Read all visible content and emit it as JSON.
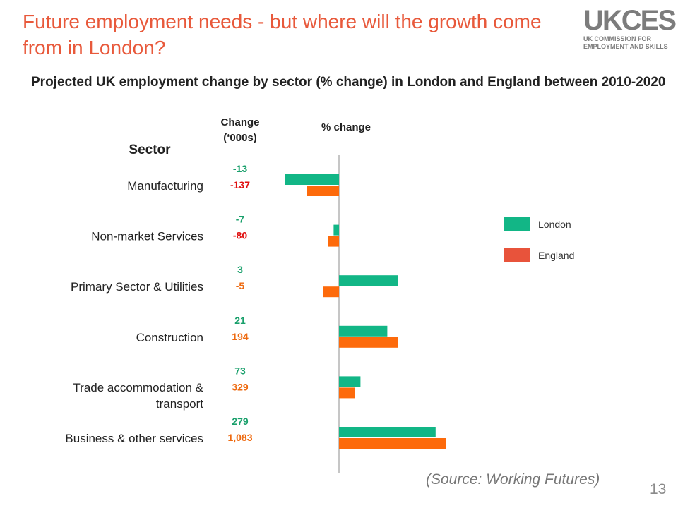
{
  "slide": {
    "title": "Future employment needs - but where will the growth come from in London?",
    "source": "(Source: Working Futures)",
    "page_number": "13"
  },
  "logo": {
    "word": "UKCES",
    "line1": "UK COMMISSION FOR",
    "line2": "EMPLOYMENT AND SKILLS"
  },
  "chart_data": {
    "type": "bar",
    "orientation": "horizontal",
    "title": "Projected UK employment change by sector (% change) in London and England between 2010-2020",
    "category_header": "Sector",
    "change_header": "Change (‘000s)",
    "change_header_lines": [
      "Change",
      "(‘000s)"
    ],
    "xlabel": "% change",
    "categories": [
      [
        "Manufacturing"
      ],
      [
        "Non-market Services"
      ],
      [
        "Primary Sector & Utilities"
      ],
      [
        "Construction"
      ],
      [
        "Trade accommodation &",
        "transport"
      ],
      [
        "Business & other services"
      ]
    ],
    "series": [
      {
        "name": "London",
        "color": "#12b686",
        "values": [
          -10,
          -1,
          11,
          9,
          4,
          18
        ],
        "change_labels": [
          "-13",
          "-7",
          "3",
          "21",
          "73",
          "279"
        ],
        "label_colors": [
          "#1aa06c",
          "#1aa06c",
          "#1aa06c",
          "#1aa06c",
          "#1aa06c",
          "#1aa06c"
        ]
      },
      {
        "name": "England",
        "color": "#fd6a0b",
        "values": [
          -6,
          -2,
          -3,
          11,
          3,
          20
        ],
        "change_labels": [
          "-137",
          "-80",
          "-5",
          "194",
          "329",
          "1,083"
        ],
        "label_colors": [
          "#e01010",
          "#e01010",
          "#ee6a10",
          "#ee6a10",
          "#ee6a10",
          "#ee6a10"
        ]
      }
    ],
    "legend": [
      "London",
      "England"
    ],
    "legend_colors": [
      "#12b686",
      "#e8533b"
    ],
    "legend_position": "right",
    "xlim": [
      -12,
      22
    ],
    "grid": false
  }
}
